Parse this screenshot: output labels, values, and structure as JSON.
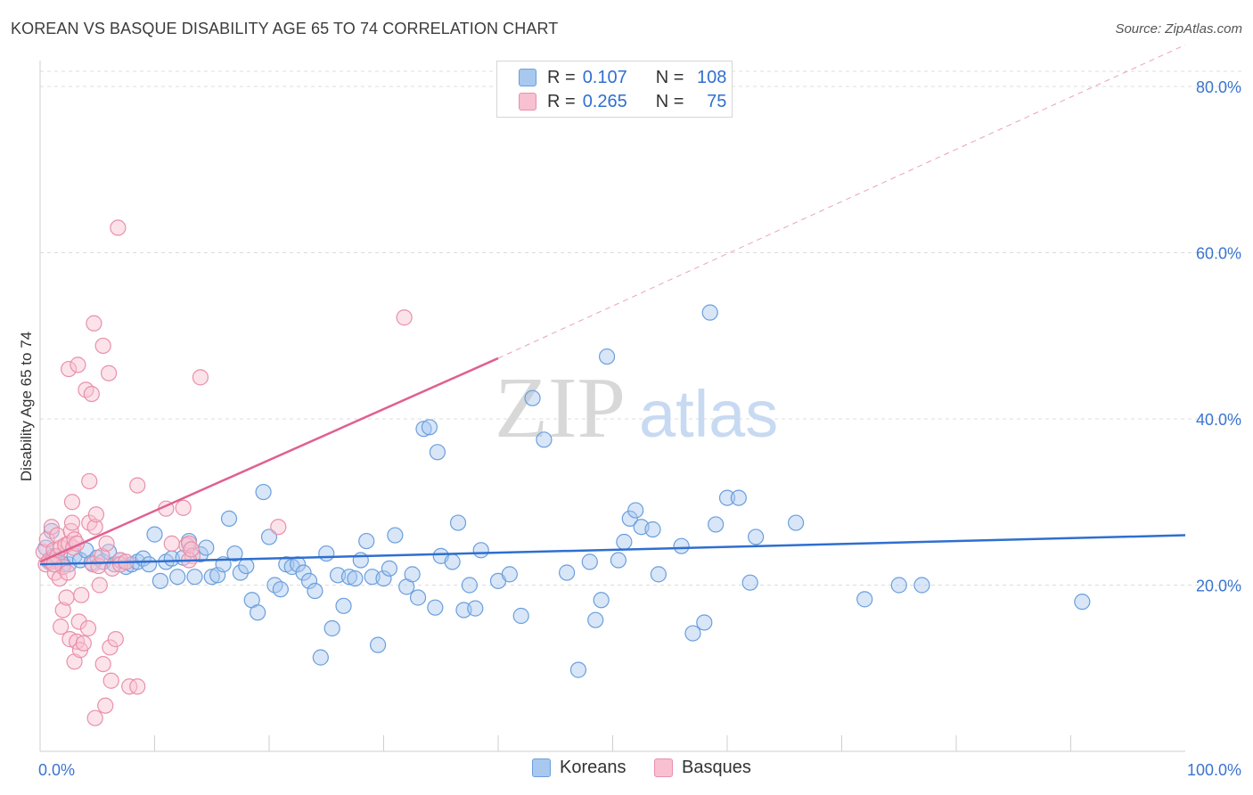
{
  "title": "KOREAN VS BASQUE DISABILITY AGE 65 TO 74 CORRELATION CHART",
  "source": "Source: ZipAtlas.com",
  "watermark": {
    "zip": "ZIP",
    "atlas": "atlas"
  },
  "legend": {
    "r_label": "R =",
    "n_label": "N =",
    "rows": [
      {
        "r": "0.107",
        "n": "108",
        "color": "#a8c8f0",
        "border": "#6a9fdc"
      },
      {
        "r": "0.265",
        "n": "75",
        "color": "#f8c0d0",
        "border": "#e890aa"
      }
    ]
  },
  "bottom_legend": [
    {
      "label": "Koreans",
      "color": "#a8c8f0",
      "border": "#6a9fdc"
    },
    {
      "label": "Basques",
      "color": "#f8c0d0",
      "border": "#e890aa"
    }
  ],
  "chart_data": {
    "type": "scatter",
    "title": "KOREAN VS BASQUE DISABILITY AGE 65 TO 74 CORRELATION CHART",
    "xlabel": "",
    "ylabel": "Disability Age 65 to 74",
    "xlim": [
      0,
      100
    ],
    "ylim": [
      0,
      80
    ],
    "x_tick_labels": [
      "0.0%",
      "100.0%"
    ],
    "y_ticks": [
      20,
      40,
      60,
      80
    ],
    "y_tick_labels": [
      "20.0%",
      "40.0%",
      "60.0%",
      "80.0%"
    ],
    "grid": true,
    "legend_position": "top-center",
    "series": [
      {
        "name": "Koreans",
        "color": "#6a9fdc",
        "fill": "#a8c8f0",
        "trend": {
          "x0": 0,
          "y0": 22.5,
          "x1": 100,
          "y1": 26.0,
          "color": "#2f6fd0"
        },
        "points": [
          [
            0.5,
            24.5
          ],
          [
            0.8,
            22.8
          ],
          [
            1,
            26.5
          ],
          [
            1.2,
            23.5
          ],
          [
            1.5,
            23
          ],
          [
            2,
            22.5
          ],
          [
            2.5,
            22.5
          ],
          [
            3,
            23.5
          ],
          [
            3.5,
            23
          ],
          [
            4,
            24.2
          ],
          [
            4.5,
            22.7
          ],
          [
            5,
            23.3
          ],
          [
            5.5,
            22.8
          ],
          [
            6,
            24
          ],
          [
            6.5,
            22.5
          ],
          [
            7,
            23
          ],
          [
            7.5,
            22.2
          ],
          [
            8,
            22.5
          ],
          [
            8.5,
            22.8
          ],
          [
            9,
            23.2
          ],
          [
            9.5,
            22.5
          ],
          [
            10,
            26.1
          ],
          [
            10.5,
            20.5
          ],
          [
            11,
            22.8
          ],
          [
            11.5,
            23.2
          ],
          [
            12,
            21
          ],
          [
            12.5,
            23.3
          ],
          [
            13,
            25.3
          ],
          [
            13.5,
            21
          ],
          [
            14,
            23.7
          ],
          [
            14.5,
            24.5
          ],
          [
            15,
            21
          ],
          [
            15.5,
            21.2
          ],
          [
            16,
            22.5
          ],
          [
            16.5,
            28
          ],
          [
            17,
            23.8
          ],
          [
            17.5,
            21.5
          ],
          [
            18,
            22.3
          ],
          [
            18.5,
            18.2
          ],
          [
            19,
            16.7
          ],
          [
            19.5,
            31.2
          ],
          [
            20,
            25.8
          ],
          [
            20.5,
            20
          ],
          [
            21,
            19.5
          ],
          [
            21.5,
            22.5
          ],
          [
            22,
            22.2
          ],
          [
            22.5,
            22.5
          ],
          [
            23,
            21.5
          ],
          [
            23.5,
            20.5
          ],
          [
            24,
            19.3
          ],
          [
            24.5,
            11.3
          ],
          [
            25,
            23.8
          ],
          [
            25.5,
            14.8
          ],
          [
            26,
            21.2
          ],
          [
            26.5,
            17.5
          ],
          [
            27,
            21
          ],
          [
            27.5,
            20.8
          ],
          [
            28,
            23
          ],
          [
            28.5,
            25.3
          ],
          [
            29,
            21
          ],
          [
            29.5,
            12.8
          ],
          [
            30,
            20.8
          ],
          [
            30.5,
            22
          ],
          [
            31,
            26
          ],
          [
            32,
            19.8
          ],
          [
            32.5,
            21.3
          ],
          [
            33,
            18.5
          ],
          [
            33.5,
            38.8
          ],
          [
            34,
            39
          ],
          [
            34.5,
            17.3
          ],
          [
            34.7,
            36
          ],
          [
            35,
            23.5
          ],
          [
            36,
            22.8
          ],
          [
            36.5,
            27.5
          ],
          [
            37,
            17
          ],
          [
            37.5,
            20
          ],
          [
            38,
            17.2
          ],
          [
            38.5,
            24.2
          ],
          [
            40,
            20.5
          ],
          [
            41,
            21.3
          ],
          [
            42,
            16.3
          ],
          [
            43,
            42.5
          ],
          [
            44,
            37.5
          ],
          [
            46,
            21.5
          ],
          [
            47,
            9.8
          ],
          [
            48,
            22.8
          ],
          [
            48.5,
            15.8
          ],
          [
            49,
            18.2
          ],
          [
            49.5,
            47.5
          ],
          [
            50.5,
            23
          ],
          [
            51,
            25.2
          ],
          [
            51.5,
            28
          ],
          [
            52,
            29
          ],
          [
            52.5,
            27
          ],
          [
            53.5,
            26.7
          ],
          [
            54,
            21.3
          ],
          [
            56,
            24.7
          ],
          [
            57,
            14.2
          ],
          [
            58,
            15.5
          ],
          [
            58.5,
            52.8
          ],
          [
            59,
            27.3
          ],
          [
            60,
            30.5
          ],
          [
            61,
            30.5
          ],
          [
            62,
            20.3
          ],
          [
            62.5,
            25.8
          ],
          [
            66,
            27.5
          ],
          [
            72,
            18.3
          ],
          [
            75,
            20
          ],
          [
            77,
            20
          ],
          [
            91,
            18
          ]
        ]
      },
      {
        "name": "Basques",
        "color": "#e890aa",
        "fill": "#f8c0d0",
        "trend": {
          "x0": 0,
          "y0": 22.8,
          "x1": 40,
          "y1": 47.3,
          "dash_to": {
            "x": 100,
            "y": 85
          },
          "color": "#e06090"
        },
        "points": [
          [
            0.3,
            24
          ],
          [
            0.5,
            22.5
          ],
          [
            0.6,
            25.5
          ],
          [
            0.8,
            23
          ],
          [
            1,
            27
          ],
          [
            1,
            22.8
          ],
          [
            1.2,
            24.2
          ],
          [
            1.3,
            21.5
          ],
          [
            1.5,
            23.5
          ],
          [
            1.5,
            26
          ],
          [
            1.7,
            20.8
          ],
          [
            1.8,
            15
          ],
          [
            1.8,
            24.5
          ],
          [
            2,
            17
          ],
          [
            2,
            22.2
          ],
          [
            2.2,
            24.8
          ],
          [
            2.3,
            18.5
          ],
          [
            2.4,
            21.5
          ],
          [
            2.5,
            25
          ],
          [
            2.5,
            46
          ],
          [
            2.6,
            13.5
          ],
          [
            2.7,
            26.5
          ],
          [
            2.8,
            27.5
          ],
          [
            2.8,
            30
          ],
          [
            2.9,
            24.5
          ],
          [
            3,
            10.8
          ],
          [
            3,
            25.5
          ],
          [
            3.2,
            25
          ],
          [
            3.2,
            13.2
          ],
          [
            3.3,
            46.5
          ],
          [
            3.4,
            15.6
          ],
          [
            3.5,
            12.2
          ],
          [
            3.6,
            18.8
          ],
          [
            3.8,
            13
          ],
          [
            4,
            43.5
          ],
          [
            4.2,
            14.8
          ],
          [
            4.3,
            27.5
          ],
          [
            4.3,
            32.5
          ],
          [
            4.5,
            43
          ],
          [
            4.6,
            22.5
          ],
          [
            4.7,
            51.5
          ],
          [
            4.8,
            4
          ],
          [
            4.8,
            27
          ],
          [
            4.9,
            28.5
          ],
          [
            5.1,
            22.3
          ],
          [
            5.2,
            20
          ],
          [
            5.4,
            23.5
          ],
          [
            5.5,
            48.8
          ],
          [
            5.5,
            10.5
          ],
          [
            5.7,
            5.5
          ],
          [
            5.8,
            25
          ],
          [
            6,
            45.5
          ],
          [
            6.1,
            12.5
          ],
          [
            6.2,
            8.5
          ],
          [
            6.3,
            22
          ],
          [
            6.6,
            13.5
          ],
          [
            6.8,
            63
          ],
          [
            7,
            23
          ],
          [
            7,
            22.5
          ],
          [
            7.5,
            22.8
          ],
          [
            7.8,
            7.8
          ],
          [
            8.5,
            7.8
          ],
          [
            8.5,
            32
          ],
          [
            11,
            29.2
          ],
          [
            11.5,
            25
          ],
          [
            12.5,
            29.3
          ],
          [
            12.8,
            24.8
          ],
          [
            13,
            25
          ],
          [
            13.3,
            23.5
          ],
          [
            13,
            23
          ],
          [
            13.2,
            24.3
          ],
          [
            14,
            45
          ],
          [
            20.8,
            27
          ],
          [
            31.8,
            52.2
          ],
          [
            1.2,
            22.5
          ]
        ]
      }
    ]
  }
}
